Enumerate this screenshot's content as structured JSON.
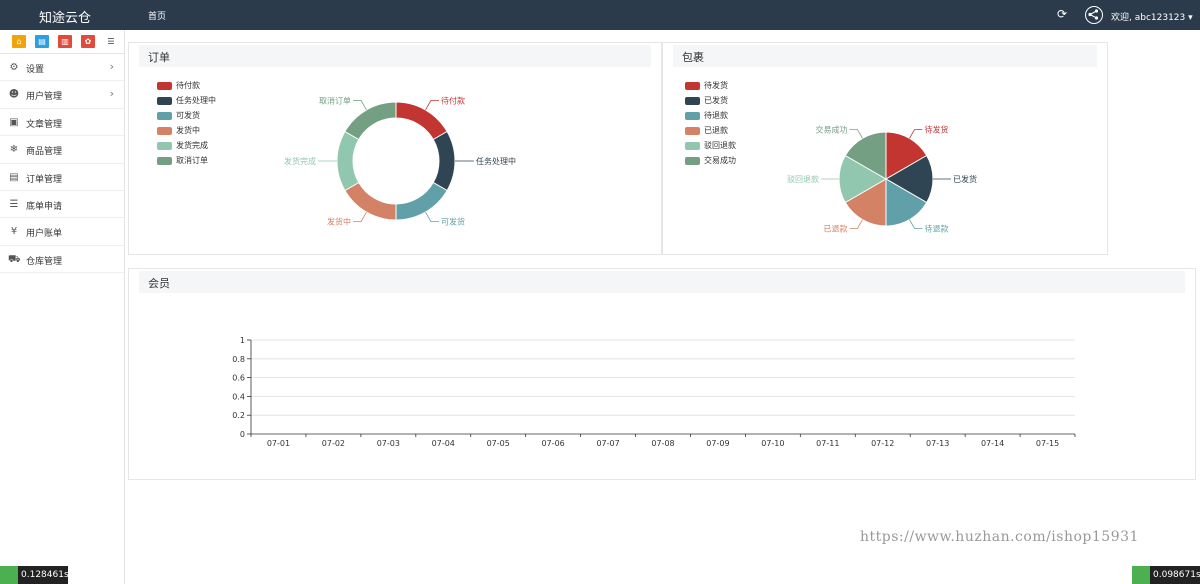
{
  "header": {
    "brand": "知途云仓",
    "nav_home": "首页",
    "user": "欢迎, abc123123 ▾",
    "refresh_icon": "refresh-icon",
    "share_icon": "share-icon"
  },
  "sidebar": {
    "shortcuts": [
      {
        "icon": "home-icon",
        "color": "#f0a30a",
        "glyph": "⌂"
      },
      {
        "icon": "file-icon",
        "color": "#2d9ee0",
        "glyph": "▤"
      },
      {
        "icon": "trash-icon",
        "color": "#e04b3c",
        "glyph": "▥"
      },
      {
        "icon": "recycle-icon",
        "color": "#e04b3c",
        "glyph": "✿"
      },
      {
        "icon": "list-icon",
        "color": "#ffffff",
        "glyph": "☰"
      }
    ],
    "items": [
      {
        "label": "设置",
        "icon": "gears-icon",
        "glyph": "⚙",
        "has_children": true
      },
      {
        "label": "用户管理",
        "icon": "users-icon",
        "glyph": "☻",
        "has_children": true
      },
      {
        "label": "文章管理",
        "icon": "newspaper-icon",
        "glyph": "▣",
        "has_children": false
      },
      {
        "label": "商品管理",
        "icon": "snowflake-icon",
        "glyph": "❄",
        "has_children": false
      },
      {
        "label": "订单管理",
        "icon": "server-icon",
        "glyph": "▤",
        "has_children": false
      },
      {
        "label": "底单申请",
        "icon": "bars-icon",
        "glyph": "☰",
        "has_children": false
      },
      {
        "label": "用户账单",
        "icon": "yen-icon",
        "glyph": "¥",
        "has_children": false
      },
      {
        "label": "仓库管理",
        "icon": "truck-icon",
        "glyph": "⛟",
        "has_children": false
      }
    ]
  },
  "orders_panel": {
    "title": "订单",
    "chart_data": {
      "type": "pie",
      "donut": true,
      "labels": [
        "待付款",
        "任务处理中",
        "可发货",
        "发货中",
        "发货完成",
        "取消订单"
      ],
      "values": [
        1,
        1,
        1,
        1,
        1,
        1
      ],
      "colors": [
        "#c23531",
        "#2f4554",
        "#61a0a8",
        "#d48265",
        "#91c7ae",
        "#749f83"
      ],
      "legend_position": "top-left"
    }
  },
  "packages_panel": {
    "title": "包裹",
    "chart_data": {
      "type": "pie",
      "donut": false,
      "labels": [
        "待发货",
        "已发货",
        "待退款",
        "已退款",
        "驳回退款",
        "交易成功"
      ],
      "values": [
        1,
        1,
        1,
        1,
        1,
        1
      ],
      "colors": [
        "#c23531",
        "#2f4554",
        "#61a0a8",
        "#d48265",
        "#91c7ae",
        "#749f83"
      ],
      "legend_position": "top-left"
    }
  },
  "members_panel": {
    "title": "会员",
    "chart_data": {
      "type": "line",
      "x": [
        "07-01",
        "07-02",
        "07-03",
        "07-04",
        "07-05",
        "07-06",
        "07-07",
        "07-08",
        "07-09",
        "07-10",
        "07-11",
        "07-12",
        "07-13",
        "07-14",
        "07-15"
      ],
      "y_ticks": [
        "0",
        "0.2",
        "0.4",
        "0.6",
        "0.8",
        "1"
      ],
      "ylim": [
        0,
        1
      ],
      "grid": true
    }
  },
  "watermark": "https://www.huzhan.com/ishop15931",
  "timers": {
    "left": "0.128461s",
    "right": "0.098671s"
  }
}
